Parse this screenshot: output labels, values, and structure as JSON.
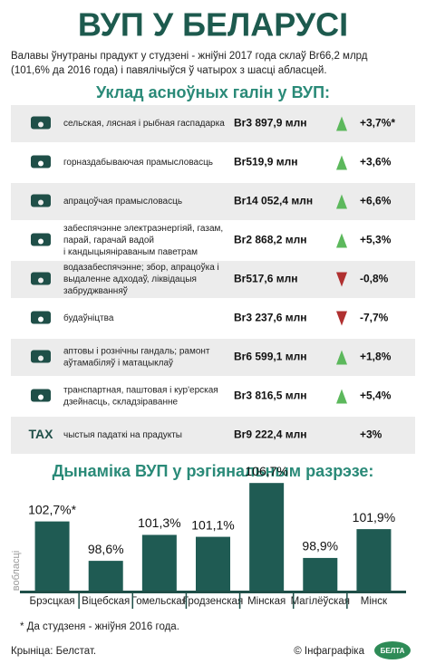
{
  "header": {
    "title": "ВУП У БЕЛАРУСІ",
    "subtitle": [
      "Валавы ўнутраны прадукт у студзені - жніўні 2017 года склаў Br66,2 млрд",
      "(101,6% да 2016 года) і павялічыўся ў чатырох з шасці абласцей."
    ]
  },
  "table": {
    "heading": "Уклад асноўных галін у ВУП:",
    "rows": [
      {
        "label": [
          "сельская, лясная і рыбная гаспадарка"
        ],
        "amount": "Br3 897,9 млн",
        "trend": "up",
        "change": "+3,7%*"
      },
      {
        "label": [
          "горназдабываючая прамысловасць"
        ],
        "amount": "Br519,9 млн",
        "trend": "up",
        "change": "+3,6%"
      },
      {
        "label": [
          "апрацоўчая прамысловасць"
        ],
        "amount": "Br14 052,4 млн",
        "trend": "up",
        "change": "+6,6%"
      },
      {
        "label": [
          "забеспячэнне электраэнергіяй, газам,",
          "парай, гарачай вадой",
          "і кандыцыяніраваным паветрам"
        ],
        "amount": "Br2 868,2 млн",
        "trend": "up",
        "change": "+5,3%"
      },
      {
        "label": [
          "водазабеспячэнне; збор, апрацоўка і",
          "выдаленне адходаў, ліквідацыя",
          "забруджванняў"
        ],
        "amount": "Br517,6 млн",
        "trend": "down",
        "change": "-0,8%"
      },
      {
        "label": [
          "будаўніцтва"
        ],
        "amount": "Br3 237,6 млн",
        "trend": "down",
        "change": "-7,7%"
      },
      {
        "label": [
          "аптовы і рознічны гандаль; рамонт",
          "аўтамабіляў і матацыклаў"
        ],
        "amount": "Br6 599,1 млн",
        "trend": "up",
        "change": "+1,8%"
      },
      {
        "label": [
          "транспартная, паштовая і кур'ерская",
          "дзейнасць, складзіраванне"
        ],
        "amount": "Br3 816,5 млн",
        "trend": "up",
        "change": "+5,4%"
      },
      {
        "icon_text": "TAX",
        "label": [
          "чыстыя падаткі на прадукты"
        ],
        "amount": "Br9 222,4 млн",
        "change": "+3%"
      }
    ]
  },
  "chart_data": {
    "type": "bar",
    "title": "Дынаміка ВУП у рэгіянальным разрэзе:",
    "y_label": "вобласці",
    "categories": [
      "Брэсцкая",
      "Віцебская",
      "Гомельская",
      "Гродзенская",
      "Мінская",
      "Магілёўская",
      "Мінск"
    ],
    "values": [
      102.7,
      98.6,
      101.3,
      101.1,
      106.7,
      98.9,
      101.9
    ],
    "value_labels": [
      "102,7%*",
      "98,6%",
      "101,3%",
      "101,1%",
      "106,7%",
      "98,9%",
      "101,9%"
    ],
    "color": "#1f5b53",
    "ylim": [
      95.5,
      107
    ]
  },
  "footer": {
    "note": "* Да студзеня - жніўня 2016 года.",
    "source": "Крыніца: Белстат.",
    "credit": "© Інфаграфіка",
    "logo": "БЕЛТА"
  }
}
